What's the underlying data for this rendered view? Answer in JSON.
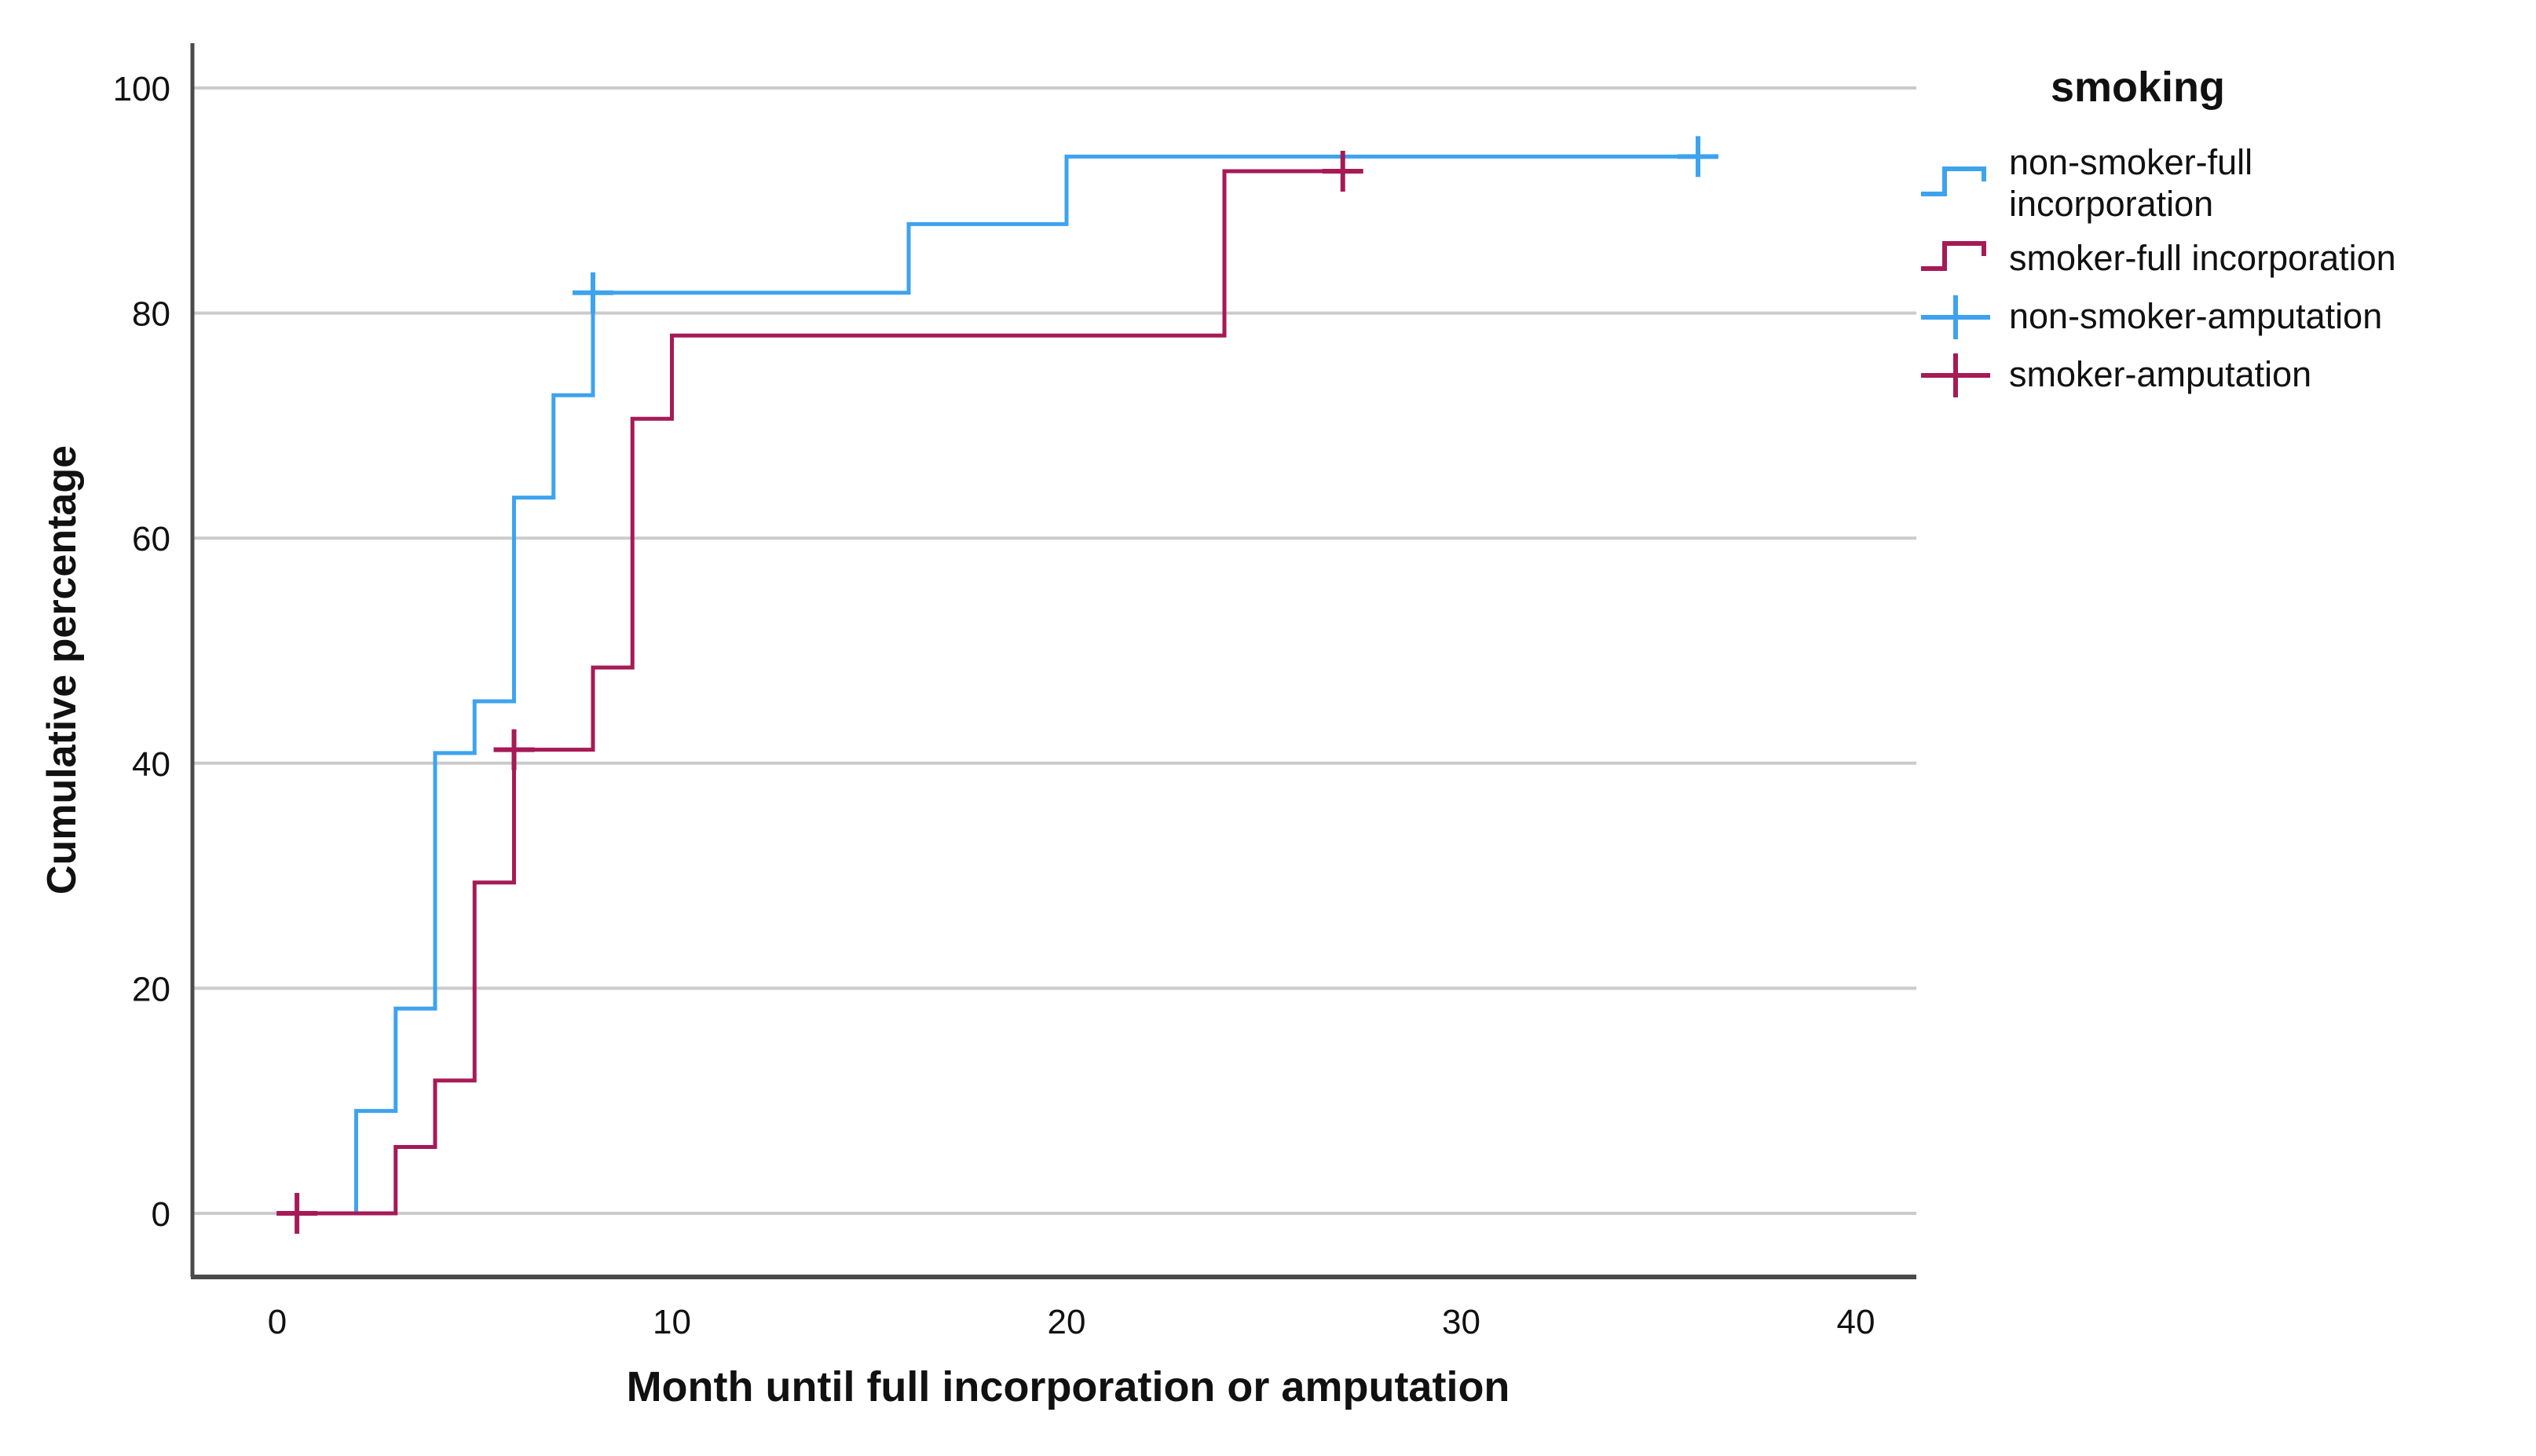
{
  "chart_data": {
    "type": "line",
    "subtype": "kaplan-meier-step",
    "title": "",
    "xlabel": "Month until full incorporation or amputation",
    "ylabel": "Cumulative percentage",
    "xlim": [
      0,
      40
    ],
    "ylim": [
      0,
      100
    ],
    "x_ticks": [
      0,
      10,
      20,
      30,
      40
    ],
    "y_ticks": [
      0,
      20,
      40,
      60,
      80,
      100
    ],
    "grid": "horizontal",
    "legend_position": "right",
    "series": [
      {
        "name": "non-smoker",
        "color": "#3EA3EE",
        "start_x": 0,
        "start_y": 0,
        "steps": [
          [
            2,
            9.1
          ],
          [
            3,
            18.2
          ],
          [
            4,
            40.9
          ],
          [
            5,
            45.5
          ],
          [
            6,
            63.6
          ],
          [
            7,
            72.7
          ],
          [
            8,
            81.8
          ],
          [
            16,
            87.9
          ],
          [
            20,
            93.9
          ]
        ],
        "end_x": 36,
        "censor_marks": [
          [
            8,
            81.8
          ],
          [
            36,
            93.9
          ]
        ]
      },
      {
        "name": "smoker",
        "color": "#A61A56",
        "start_x": 0,
        "start_y": 0,
        "steps": [
          [
            3,
            5.9
          ],
          [
            4,
            11.8
          ],
          [
            5,
            29.4
          ],
          [
            6,
            41.2
          ],
          [
            8,
            48.5
          ],
          [
            9,
            70.6
          ],
          [
            10,
            78.0
          ],
          [
            24,
            92.6
          ]
        ],
        "end_x": 27.4,
        "censor_marks": [
          [
            0.5,
            0
          ],
          [
            6,
            41.2
          ],
          [
            27,
            92.6
          ]
        ]
      }
    ],
    "colors": {
      "gridline": "#CBCBCB",
      "axis_line": "#4A4A4A",
      "text": "#111111"
    }
  },
  "axes": {
    "y_title": "Cumulative percentage",
    "x_title": "Month until full incorporation or amputation"
  },
  "legend": {
    "title": "smoking",
    "items": [
      {
        "label": "non-smoker-full\nincorporation",
        "symbol": "step",
        "color": "#3EA3EE"
      },
      {
        "label": "smoker-full incorporation",
        "symbol": "step",
        "color": "#A61A56"
      },
      {
        "label": "non-smoker-amputation",
        "symbol": "cross",
        "color": "#3EA3EE"
      },
      {
        "label": "smoker-amputation",
        "symbol": "cross",
        "color": "#A61A56"
      }
    ]
  }
}
